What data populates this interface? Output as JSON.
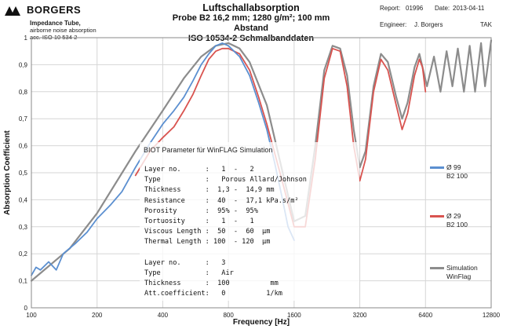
{
  "header": {
    "logo_text": "BORGERS",
    "subtitle_lines": [
      "Impedance Tube,",
      "airborne noise absorption",
      "acc. ISO 10 534-2"
    ],
    "title_lines": [
      "Luftschallabsorption",
      "Probe B2 16,2 mm; 1280 g/m²; 100 mm Abstand",
      "ISO 10534-2 Schmalbanddaten"
    ],
    "report_label": "Report:",
    "report_value": "01996",
    "date_label": "Date:",
    "date_value": "2013-04-11",
    "engineer_label": "Engineer:",
    "engineer_value": "J. Borgers",
    "initials": "TAK"
  },
  "biot_box": {
    "title": "BIOT Parameter für WinFLAG Simulation",
    "lines": [
      "Layer no.      :   1  -   2",
      "Type           :   Porous Allard/Johnson",
      "Thickness      :  1,3 -  14,9 mm",
      "Resistance     :  40  -  17,1 kPa.s/m²",
      "Porosity       :  95% -  95%",
      "Tortuosity     :   1  -   1",
      "Viscous Length :  50  -  60  µm",
      "Thermal Length : 100  - 120  µm",
      "",
      "Layer no.      :   3",
      "Type           :   Air",
      "Thickness      :  100          mm",
      "Att.coefficient:   0          1/km"
    ]
  },
  "legend": [
    {
      "label_lines": [
        "Ø 99",
        "B2 100"
      ],
      "color": "#5b8fd0"
    },
    {
      "label_lines": [
        "Ø 29",
        "B2 100"
      ],
      "color": "#d9534f"
    },
    {
      "label_lines": [
        "Simulation",
        "WinFlag"
      ],
      "color": "#8c8c8c"
    }
  ],
  "chart_data": {
    "type": "line",
    "xlabel": "Frequency [Hz]",
    "ylabel": "Absorption Coefficient",
    "x_scale": "log2",
    "xlim": [
      100,
      12800
    ],
    "ylim": [
      0,
      1
    ],
    "x_ticks": [
      "100",
      "200",
      "400",
      "800",
      "1600",
      "3200",
      "6400",
      "12800"
    ],
    "y_ticks": [
      "0",
      "0,1",
      "0,2",
      "0,3",
      "0,4",
      "0,5",
      "0,6",
      "0,7",
      "0,8",
      "0,9",
      "1"
    ],
    "grid": true,
    "series": [
      {
        "name": "Ø 99 B2 100",
        "color": "#5b8fd0",
        "points": [
          [
            100,
            0.12
          ],
          [
            105,
            0.15
          ],
          [
            110,
            0.14
          ],
          [
            120,
            0.17
          ],
          [
            130,
            0.14
          ],
          [
            140,
            0.2
          ],
          [
            160,
            0.24
          ],
          [
            180,
            0.28
          ],
          [
            200,
            0.33
          ],
          [
            230,
            0.38
          ],
          [
            260,
            0.43
          ],
          [
            300,
            0.52
          ],
          [
            350,
            0.61
          ],
          [
            400,
            0.68
          ],
          [
            450,
            0.73
          ],
          [
            500,
            0.78
          ],
          [
            550,
            0.84
          ],
          [
            600,
            0.9
          ],
          [
            650,
            0.94
          ],
          [
            700,
            0.97
          ],
          [
            750,
            0.98
          ],
          [
            800,
            0.97
          ],
          [
            900,
            0.93
          ],
          [
            1000,
            0.86
          ],
          [
            1100,
            0.76
          ],
          [
            1200,
            0.66
          ],
          [
            1300,
            0.54
          ],
          [
            1400,
            0.42
          ],
          [
            1500,
            0.3
          ],
          [
            1600,
            0.25
          ]
        ]
      },
      {
        "name": "Ø 29 B2 100",
        "color": "#d9534f",
        "points": [
          [
            300,
            0.49
          ],
          [
            350,
            0.58
          ],
          [
            400,
            0.63
          ],
          [
            450,
            0.67
          ],
          [
            500,
            0.73
          ],
          [
            550,
            0.79
          ],
          [
            600,
            0.86
          ],
          [
            650,
            0.92
          ],
          [
            700,
            0.95
          ],
          [
            750,
            0.96
          ],
          [
            800,
            0.96
          ],
          [
            900,
            0.94
          ],
          [
            1000,
            0.88
          ],
          [
            1100,
            0.78
          ],
          [
            1200,
            0.68
          ],
          [
            1400,
            0.48
          ],
          [
            1600,
            0.3
          ],
          [
            1800,
            0.3
          ],
          [
            2000,
            0.55
          ],
          [
            2200,
            0.85
          ],
          [
            2400,
            0.96
          ],
          [
            2600,
            0.95
          ],
          [
            2800,
            0.82
          ],
          [
            3000,
            0.6
          ],
          [
            3200,
            0.47
          ],
          [
            3400,
            0.55
          ],
          [
            3700,
            0.8
          ],
          [
            4000,
            0.92
          ],
          [
            4300,
            0.88
          ],
          [
            4700,
            0.75
          ],
          [
            5000,
            0.66
          ],
          [
            5300,
            0.72
          ],
          [
            5700,
            0.86
          ],
          [
            6000,
            0.92
          ],
          [
            6200,
            0.89
          ],
          [
            6400,
            0.8
          ]
        ]
      },
      {
        "name": "Simulation WinFlag",
        "color": "#8c8c8c",
        "points": [
          [
            100,
            0.1
          ],
          [
            150,
            0.22
          ],
          [
            200,
            0.35
          ],
          [
            300,
            0.58
          ],
          [
            400,
            0.73
          ],
          [
            500,
            0.85
          ],
          [
            600,
            0.93
          ],
          [
            700,
            0.97
          ],
          [
            800,
            0.98
          ],
          [
            900,
            0.96
          ],
          [
            1000,
            0.91
          ],
          [
            1200,
            0.75
          ],
          [
            1400,
            0.52
          ],
          [
            1600,
            0.32
          ],
          [
            1800,
            0.34
          ],
          [
            2000,
            0.6
          ],
          [
            2200,
            0.88
          ],
          [
            2400,
            0.97
          ],
          [
            2600,
            0.96
          ],
          [
            2800,
            0.86
          ],
          [
            3000,
            0.66
          ],
          [
            3200,
            0.52
          ],
          [
            3400,
            0.58
          ],
          [
            3700,
            0.82
          ],
          [
            4000,
            0.94
          ],
          [
            4300,
            0.91
          ],
          [
            4700,
            0.78
          ],
          [
            5000,
            0.7
          ],
          [
            5300,
            0.76
          ],
          [
            5700,
            0.89
          ],
          [
            6000,
            0.94
          ],
          [
            6500,
            0.82
          ],
          [
            7000,
            0.93
          ],
          [
            7500,
            0.8
          ],
          [
            8000,
            0.95
          ],
          [
            8500,
            0.82
          ],
          [
            9000,
            0.96
          ],
          [
            9600,
            0.8
          ],
          [
            10200,
            0.97
          ],
          [
            10800,
            0.8
          ],
          [
            11500,
            0.98
          ],
          [
            12000,
            0.82
          ],
          [
            12800,
            0.99
          ]
        ]
      }
    ]
  }
}
